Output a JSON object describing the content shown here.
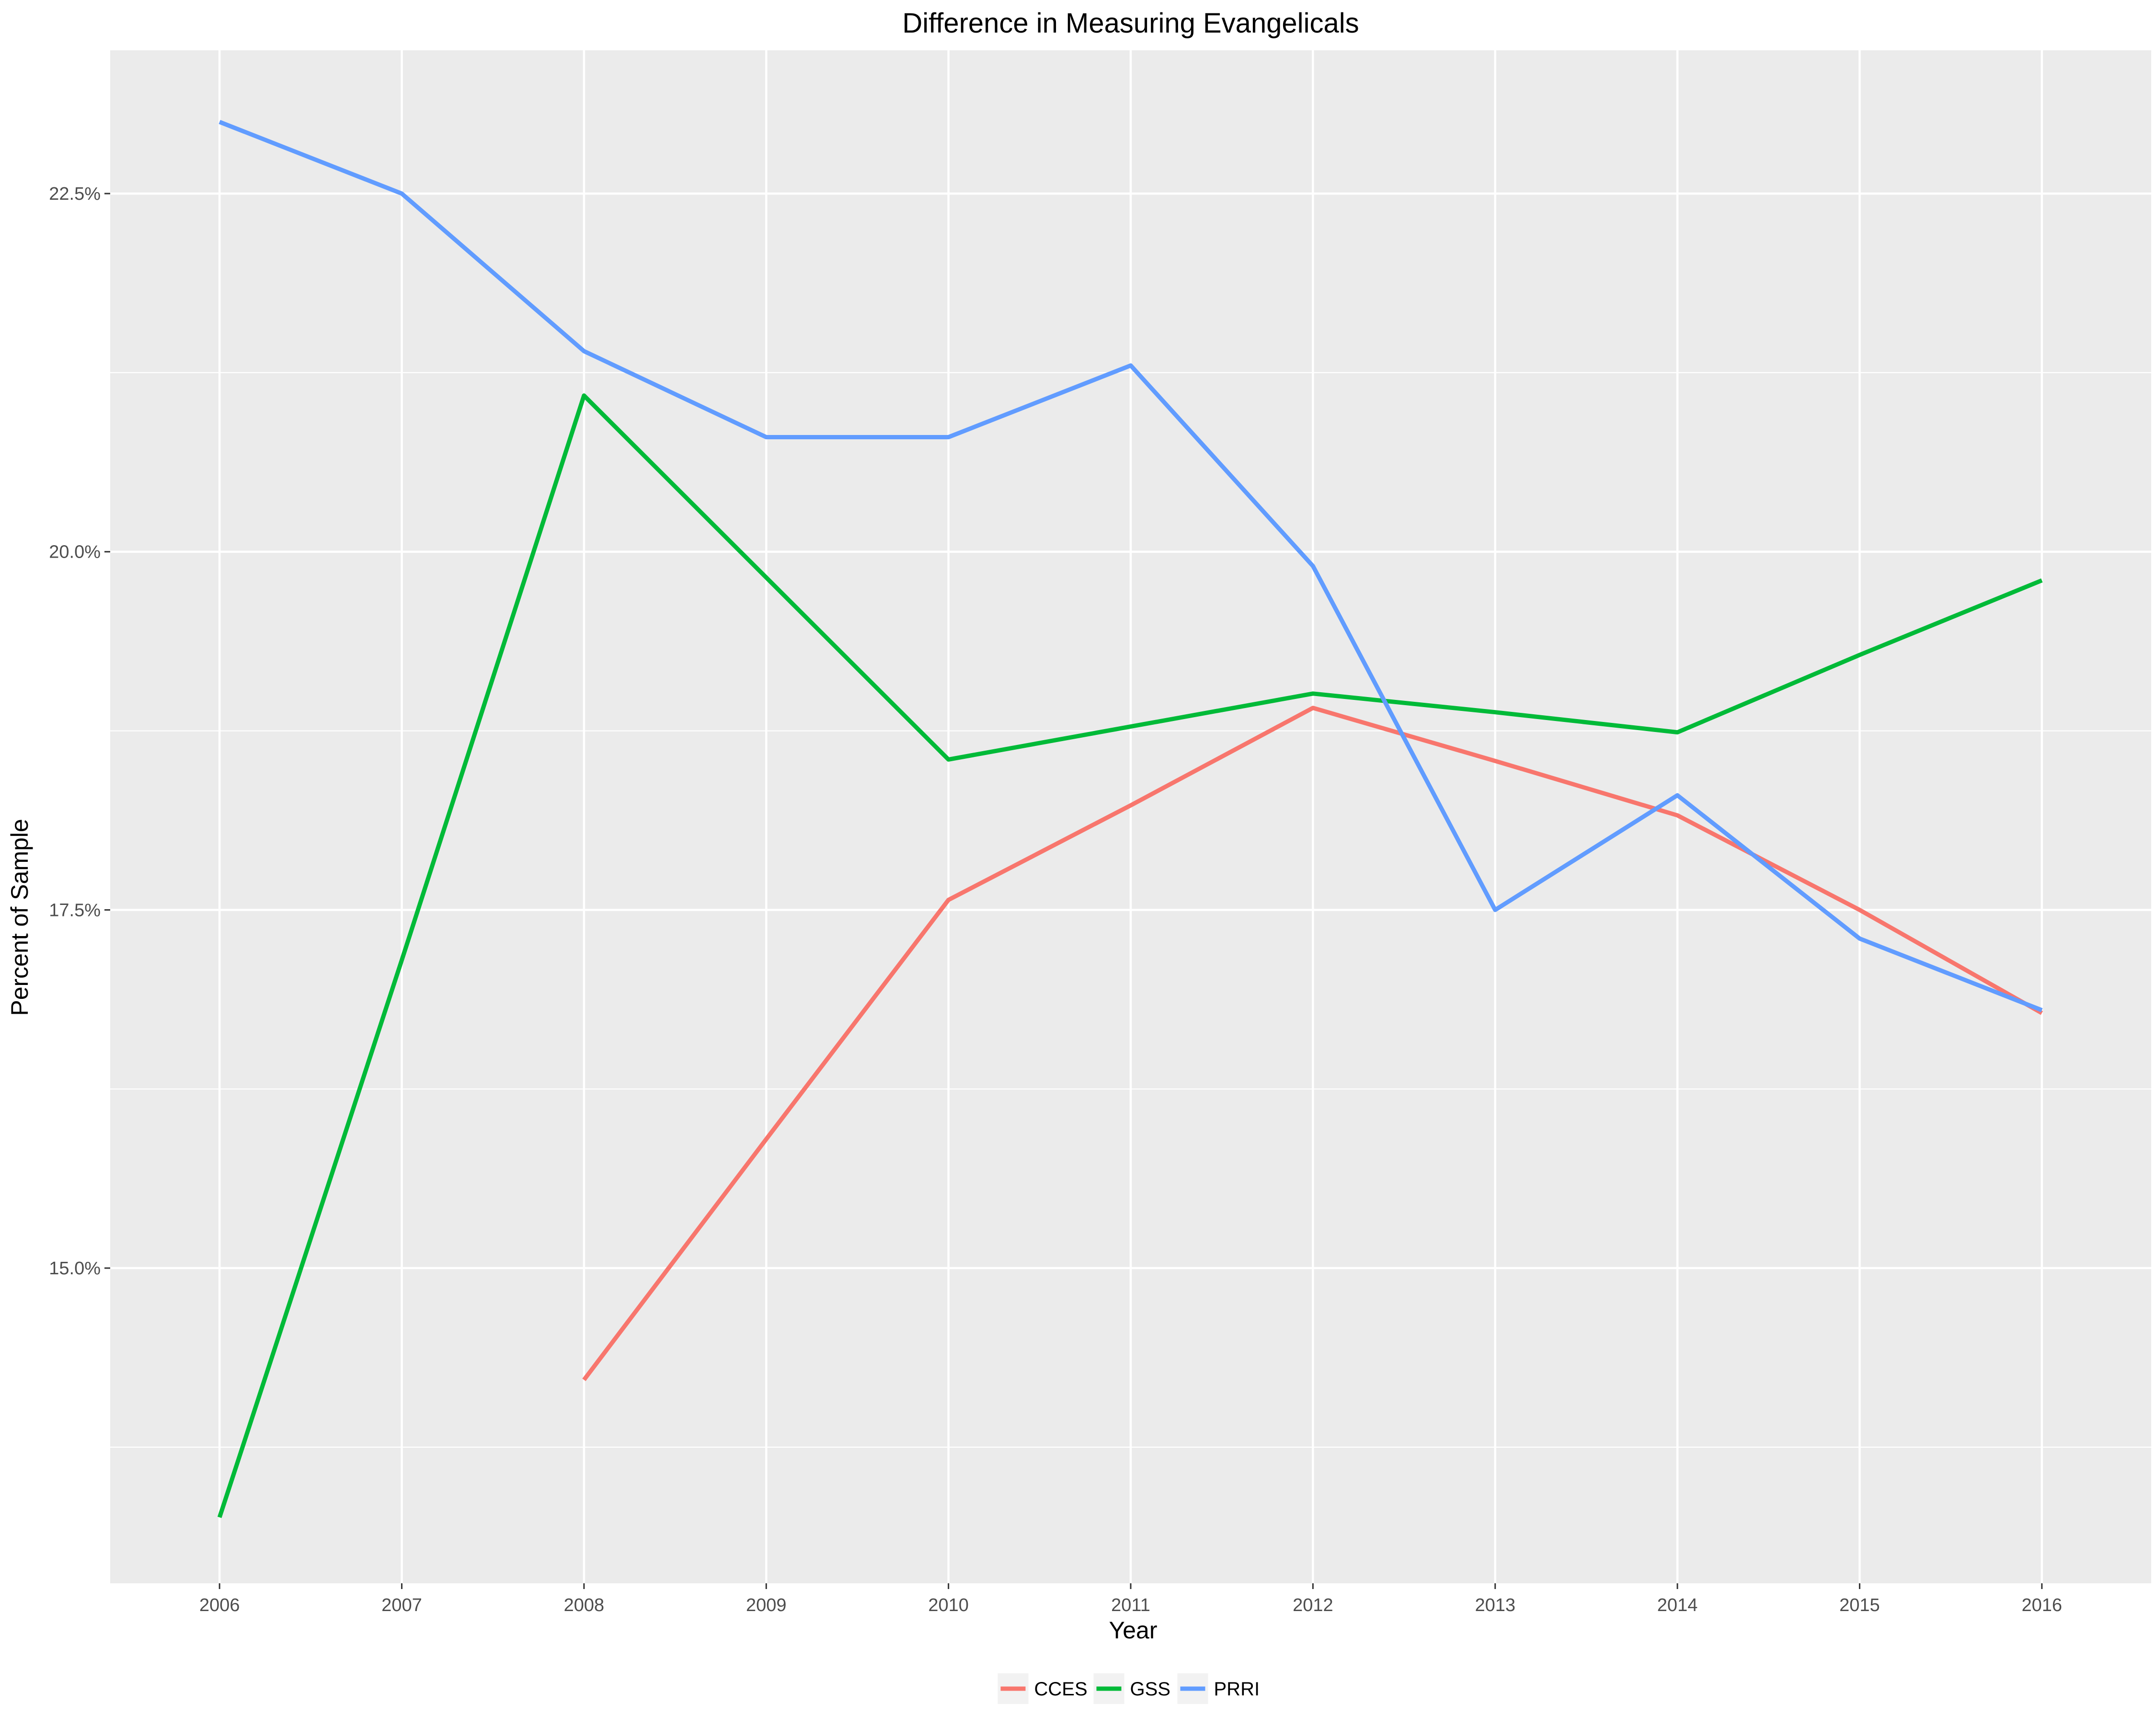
{
  "chart_data": {
    "type": "line",
    "title": "Difference in Measuring Evangelicals",
    "xlabel": "Year",
    "ylabel": "Percent of Sample",
    "x": [
      2006,
      2007,
      2008,
      2009,
      2010,
      2011,
      2012,
      2013,
      2014,
      2015,
      2016
    ],
    "x_tick_labels": [
      "2006",
      "2007",
      "2008",
      "2009",
      "2010",
      "2011",
      "2012",
      "2013",
      "2014",
      "2015",
      "2016"
    ],
    "xlim": [
      2005.4,
      2016.6
    ],
    "y_ticks": [
      15.0,
      17.5,
      20.0,
      22.5
    ],
    "y_tick_labels": [
      "15.0%",
      "17.5%",
      "20.0%",
      "22.5%"
    ],
    "ylim": [
      12.8,
      23.5
    ],
    "grid": true,
    "legend_position": "bottom",
    "series": [
      {
        "name": "CCES",
        "color": "#F8766D",
        "values": [
          null,
          null,
          14.22,
          15.9,
          17.57,
          18.23,
          18.91,
          18.54,
          18.16,
          17.5,
          16.78
        ]
      },
      {
        "name": "GSS",
        "color": "#00BA38",
        "values": [
          13.26,
          17.15,
          21.09,
          19.82,
          18.55,
          18.78,
          19.01,
          18.88,
          18.74,
          19.28,
          19.8
        ]
      },
      {
        "name": "PRRI",
        "color": "#619CFF",
        "values": [
          23.0,
          22.5,
          21.4,
          20.8,
          20.8,
          21.3,
          19.9,
          17.5,
          18.3,
          17.3,
          16.8
        ]
      }
    ]
  }
}
